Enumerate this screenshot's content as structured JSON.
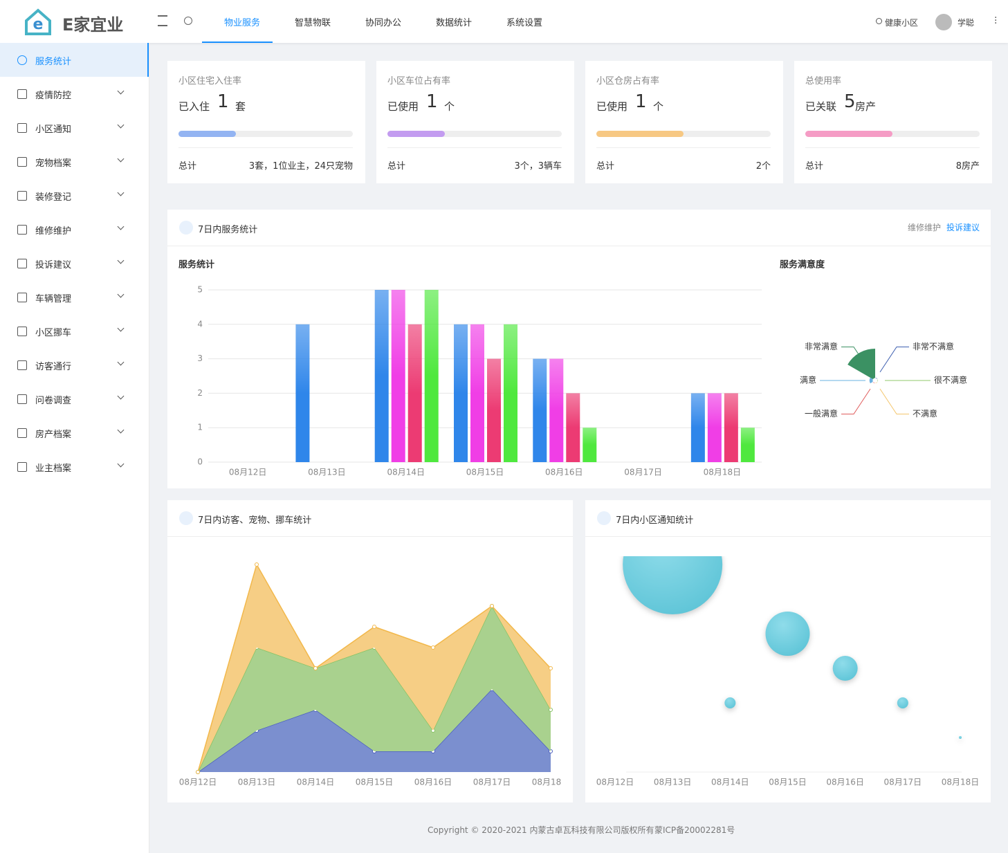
{
  "header": {
    "logo": "E家宜业",
    "nav": [
      "物业服务",
      "智慧物联",
      "协同办公",
      "数据统计",
      "系统设置"
    ],
    "community": "健康小区",
    "user": "学聪"
  },
  "sidebar": [
    "服务统计",
    "疫情防控",
    "小区通知",
    "宠物档案",
    "装修登记",
    "维修维护",
    "投诉建议",
    "车辆管理",
    "小区挪车",
    "访客通行",
    "问卷调查",
    "房产档案",
    "业主档案"
  ],
  "cards": [
    {
      "title": "小区住宅入住率",
      "prefix": "已入住",
      "value": 1,
      "unit": "套",
      "progress": 33,
      "color": "#93b4f2",
      "total_label": "总计",
      "total": "3套，1位业主，24只宠物"
    },
    {
      "title": "小区车位占有率",
      "prefix": "已使用",
      "value": 1,
      "unit": "个",
      "progress": 33,
      "color": "#c39cf0",
      "total_label": "总计",
      "total": "3个，3辆车"
    },
    {
      "title": "小区仓房占有率",
      "prefix": "已使用",
      "value": 1,
      "unit": "个",
      "progress": 50,
      "color": "#f7c883",
      "total_label": "总计",
      "total": "2个"
    },
    {
      "title": "总使用率",
      "prefix": "已关联",
      "value": 5,
      "unit": "房产",
      "progress": 50,
      "color": "#f59cc5",
      "total_label": "总计",
      "total": "8房产"
    }
  ],
  "panels": {
    "service": {
      "title": "7日内服务统计",
      "links": [
        "维修维护",
        "投诉建议"
      ]
    },
    "visitors": {
      "title": "7日内访客、宠物、挪车统计"
    },
    "notices": {
      "title": "7日内小区通知统计"
    }
  },
  "chart_data": [
    {
      "type": "bar",
      "title": "服务统计",
      "categories": [
        "08月12日",
        "08月13日",
        "08月14日",
        "08月15日",
        "08月16日",
        "08月17日",
        "08月18日"
      ],
      "series": [
        {
          "color": "#2f86ea",
          "values": [
            0,
            4,
            5,
            4,
            3,
            0,
            2
          ]
        },
        {
          "color": "#f03ee6",
          "values": [
            0,
            0,
            5,
            4,
            3,
            0,
            2
          ]
        },
        {
          "color": "#ec3b73",
          "values": [
            0,
            0,
            4,
            3,
            2,
            0,
            2
          ]
        },
        {
          "color": "#4fe83e",
          "values": [
            0,
            0,
            5,
            4,
            1,
            0,
            1
          ]
        }
      ],
      "ylim": [
        0,
        5
      ],
      "yticks": [
        0,
        1,
        2,
        3,
        4,
        5
      ],
      "grid": true
    },
    {
      "type": "pie",
      "rose": true,
      "title": "服务满意度",
      "categories": [
        "非常满意",
        "非常不满意",
        "很不满意",
        "不满意",
        "一般满意",
        "满意"
      ],
      "values": [
        10,
        0,
        0,
        0,
        0,
        1
      ],
      "colors": [
        "#3b9163",
        "#3d5fb0",
        "#8fc96b",
        "#f4c66c",
        "#e05b5b",
        "#6ab0e0"
      ]
    },
    {
      "type": "area",
      "stacked": true,
      "categories": [
        "08月12日",
        "08月13日",
        "08月14日",
        "08月15日",
        "08月16日",
        "08月17日",
        "08月18日"
      ],
      "series": [
        {
          "color": "#7b8fcf",
          "line": "#4a5fbf",
          "values": [
            0,
            2,
            3,
            1,
            1,
            4,
            1
          ]
        },
        {
          "color": "#a9d18e",
          "line": "#86c265",
          "values": [
            0,
            4,
            2,
            5,
            1,
            4,
            2
          ]
        },
        {
          "color": "#f6ce85",
          "line": "#f2b84b",
          "values": [
            0,
            4,
            0,
            1,
            4,
            0,
            2
          ]
        }
      ],
      "ylim": [
        0,
        10.5
      ]
    },
    {
      "type": "scatter",
      "categories": [
        "08月12日",
        "08月13日",
        "08月14日",
        "08月15日",
        "08月16日",
        "08月17日",
        "08月18日"
      ],
      "values": [
        null,
        6,
        2,
        4,
        3,
        2,
        1
      ],
      "sizes": [
        null,
        36,
        4,
        16,
        9,
        4,
        1
      ],
      "color": "#5bc3d6",
      "ylim": [
        0,
        6.2
      ]
    }
  ],
  "footer": {
    "copyright": "Copyright © 2020-2021 内蒙古卓瓦科技有限公司版权所有",
    "icp": "蒙ICP备20002281号"
  }
}
